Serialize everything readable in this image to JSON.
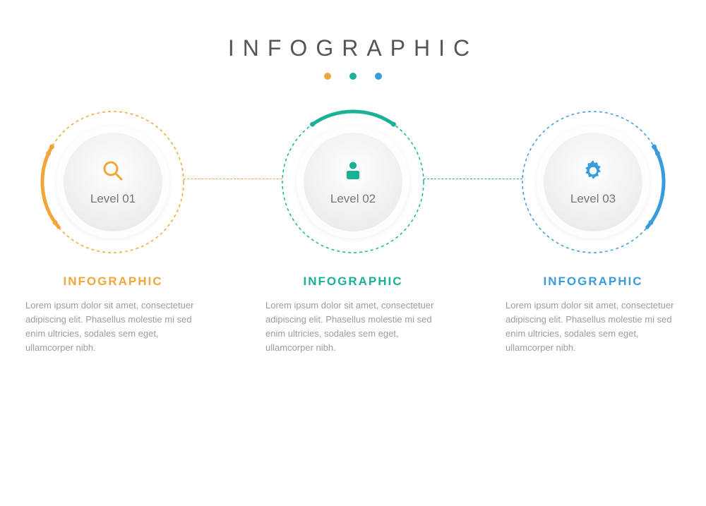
{
  "title": "INFOGRAPHIC",
  "title_color": "#555555",
  "title_fontsize": 32,
  "title_letterspacing": 12,
  "background_color": "#ffffff",
  "body_text_color": "#9c9c9c",
  "circle_diameter": 160,
  "dashed_ring_diameter": 200,
  "ring_stroke_width": 1.5,
  "thick_arc_stroke_width": 5,
  "small_dot_radius": 3.5,
  "connector_style": "dashed",
  "steps": [
    {
      "color": "#f0a63a",
      "icon": "search",
      "level_label": "Level 01",
      "heading": "INFOGRAPHIC",
      "body": "Lorem ipsum dolor sit amet, consectetuer adipiscing elit. Phasellus molestie mi sed enim ultricies, sodales sem eget, ullamcorper nibh.",
      "thick_arc": {
        "start_deg": 150,
        "end_deg": 220
      },
      "dashed_arc_behind": true,
      "accent_dots": [
        {
          "angle_deg": 150
        },
        {
          "angle_deg": 156
        },
        {
          "angle_deg": 215
        }
      ]
    },
    {
      "color": "#1bb195",
      "icon": "user",
      "level_label": "Level 02",
      "heading": "INFOGRAPHIC",
      "body": "Lorem ipsum dolor sit amet, consectetuer adipiscing elit. Phasellus molestie mi sed enim ultricies, sodales sem eget, ullamcorper nibh.",
      "thick_arc": {
        "start_deg": 55,
        "end_deg": 125
      },
      "dashed_arc_behind": true,
      "accent_dots": [
        {
          "angle_deg": 55
        },
        {
          "angle_deg": 125
        }
      ]
    },
    {
      "color": "#3a9cdc",
      "icon": "gear",
      "level_label": "Level 03",
      "heading": "INFOGRAPHIC",
      "body": "Lorem ipsum dolor sit amet, consectetuer adipiscing elit. Phasellus molestie mi sed enim ultricies, sodales sem eget, ullamcorper nibh.",
      "thick_arc": {
        "start_deg": -40,
        "end_deg": 30
      },
      "dashed_arc_behind": true,
      "accent_dots": [
        {
          "angle_deg": 24
        },
        {
          "angle_deg": 30
        },
        {
          "angle_deg": -35
        }
      ]
    }
  ],
  "connectors": [
    {
      "from_step": 0,
      "to_step": 1,
      "color": "#f0a63a"
    },
    {
      "from_step": 1,
      "to_step": 2,
      "color": "#1bb195"
    }
  ]
}
